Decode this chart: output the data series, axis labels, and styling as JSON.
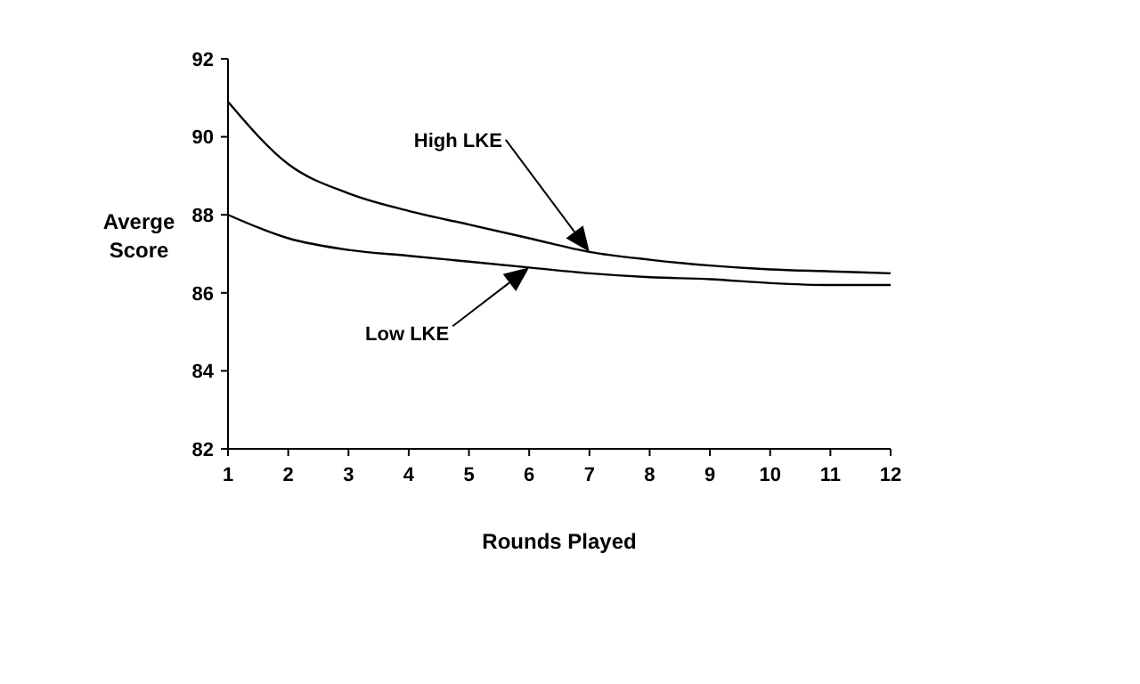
{
  "chart_data": {
    "type": "line",
    "xlabel": "Rounds Played",
    "ylabel": "Averge Score",
    "x": [
      1,
      2,
      3,
      4,
      5,
      6,
      7,
      8,
      9,
      10,
      11,
      12
    ],
    "series": [
      {
        "color": "#000000",
        "values": [
          90.9,
          89.3,
          88.55,
          88.1,
          87.75,
          87.4,
          87.05,
          86.85,
          86.7,
          86.6,
          86.55,
          86.5
        ]
      },
      {
        "color": "#000000",
        "values": [
          88.0,
          87.4,
          87.1,
          86.95,
          86.8,
          86.65,
          86.5,
          86.4,
          86.35,
          86.25,
          86.2,
          86.2
        ]
      }
    ],
    "xlim": [
      1,
      12
    ],
    "xticks": [
      1,
      2,
      3,
      4,
      5,
      6,
      7,
      8,
      9,
      10,
      11,
      12
    ],
    "ylim": [
      82,
      92
    ],
    "yticks": [
      82,
      84,
      86,
      88,
      90,
      92
    ],
    "grid": false,
    "marker": "none",
    "line_style": "solid",
    "annotations": [
      "High LKE",
      "Low LKE"
    ]
  }
}
